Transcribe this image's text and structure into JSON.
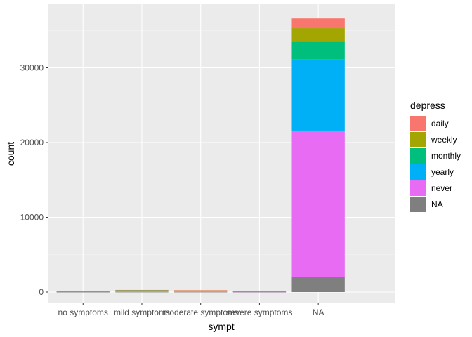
{
  "chart_data": {
    "type": "bar",
    "stacked": true,
    "xlabel": "sympt",
    "ylabel": "count",
    "categories": [
      "no symptoms",
      "mild symptoms",
      "moderate symptoms",
      "severe symptoms",
      "NA"
    ],
    "ylim": [
      0,
      36600
    ],
    "yticks": [
      0,
      10000,
      20000,
      30000
    ],
    "ytick_labels": [
      "0",
      "10000",
      "20000",
      "30000"
    ],
    "grid": true,
    "legend": {
      "title": "depress",
      "position": "right"
    },
    "series": [
      {
        "name": "daily",
        "color": "#F8766D",
        "values": [
          10,
          20,
          15,
          8,
          1300
        ]
      },
      {
        "name": "weekly",
        "color": "#A3A500",
        "values": [
          20,
          35,
          30,
          12,
          1800
        ]
      },
      {
        "name": "monthly",
        "color": "#00BF7D",
        "values": [
          25,
          50,
          45,
          20,
          2400
        ]
      },
      {
        "name": "yearly",
        "color": "#00B0F6",
        "values": [
          35,
          80,
          70,
          25,
          9500
        ]
      },
      {
        "name": "never",
        "color": "#E76BF3",
        "values": [
          40,
          90,
          80,
          30,
          19600
        ]
      },
      {
        "name": "NA",
        "color": "#7F7F7F",
        "values": [
          5,
          10,
          10,
          5,
          2000
        ]
      }
    ]
  }
}
